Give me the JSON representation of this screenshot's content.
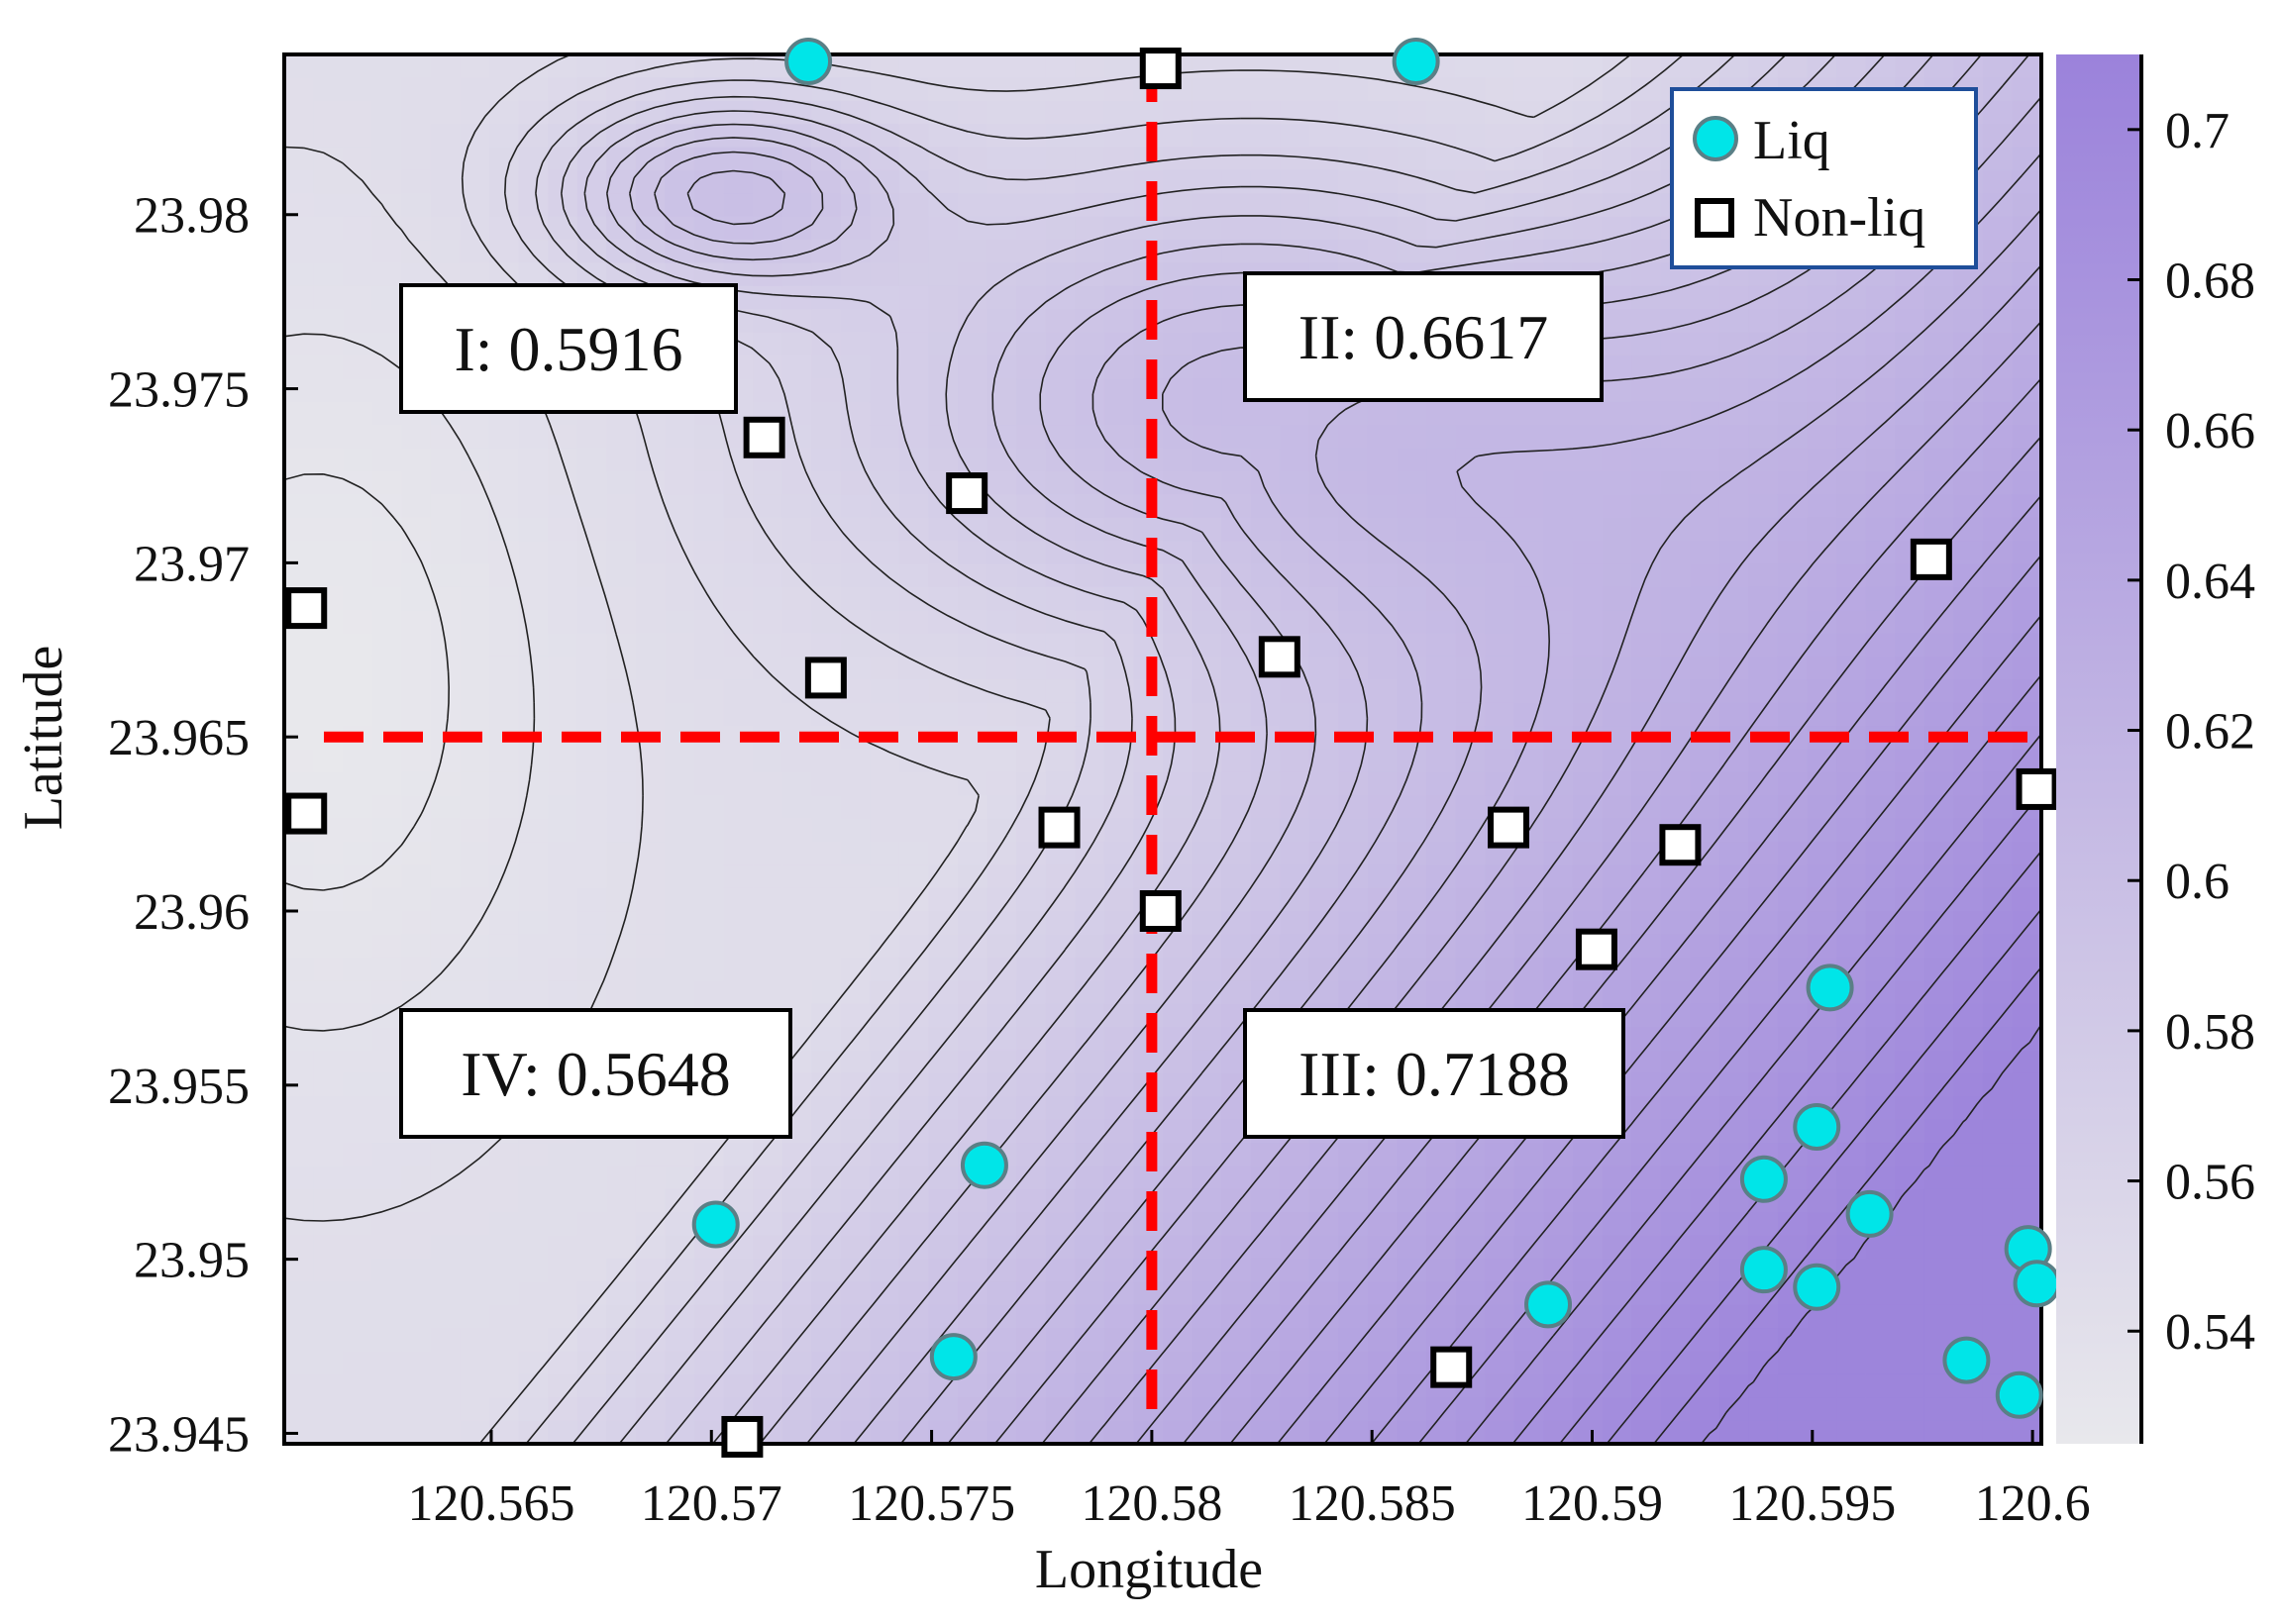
{
  "chart_data": {
    "type": "contour",
    "xlabel": "Longitude",
    "ylabel": "Latitude",
    "xlim": [
      120.5603,
      120.6002
    ],
    "ylim": [
      23.9447,
      23.9846
    ],
    "x_ticks": [
      "120.565",
      "120.57",
      "120.575",
      "120.58",
      "120.585",
      "120.59",
      "120.595",
      "120.6"
    ],
    "y_ticks": [
      "23.945",
      "23.95",
      "23.955",
      "23.96",
      "23.965",
      "23.97",
      "23.975",
      "23.98"
    ],
    "colorbar": {
      "range": [
        0.525,
        0.71
      ],
      "ticks": [
        "0.54",
        "0.56",
        "0.58",
        "0.6",
        "0.62",
        "0.64",
        "0.66",
        "0.68",
        "0.7"
      ],
      "color_low": "#e8e8ec",
      "color_high": "#9b82db"
    },
    "divider_lines": {
      "vertical_x": 120.58,
      "horizontal_y": 23.965,
      "color": "#ff0000"
    },
    "regions": [
      {
        "label": "I: 0.5916",
        "quadrant": "upper-left"
      },
      {
        "label": "II: 0.6617",
        "quadrant": "upper-right"
      },
      {
        "label": "III: 0.7188",
        "quadrant": "lower-right"
      },
      {
        "label": "IV: 0.5648",
        "quadrant": "lower-left"
      }
    ],
    "legend": {
      "placement": "top-right",
      "entries": [
        "Liq",
        "Non-liq"
      ]
    },
    "series": [
      {
        "name": "Liq",
        "marker": "circle",
        "color": "#00e5e8",
        "points": [
          [
            120.5722,
            23.9844
          ],
          [
            120.586,
            23.9844
          ],
          [
            120.5701,
            23.951
          ],
          [
            120.5762,
            23.9527
          ],
          [
            120.5755,
            23.9472
          ],
          [
            120.589,
            23.9487
          ],
          [
            120.5954,
            23.9578
          ],
          [
            120.5951,
            23.9538
          ],
          [
            120.5939,
            23.9523
          ],
          [
            120.5963,
            23.9513
          ],
          [
            120.5939,
            23.9497
          ],
          [
            120.5951,
            23.9492
          ],
          [
            120.5985,
            23.9471
          ],
          [
            120.5999,
            23.9503
          ],
          [
            120.6001,
            23.9493
          ],
          [
            120.5997,
            23.9461
          ]
        ]
      },
      {
        "name": "Non-liq",
        "marker": "square",
        "color": "#ffffff",
        "points": [
          [
            120.5802,
            23.9842
          ],
          [
            120.5712,
            23.9736
          ],
          [
            120.5758,
            23.972
          ],
          [
            120.5608,
            23.9687
          ],
          [
            120.5726,
            23.9667
          ],
          [
            120.5829,
            23.9673
          ],
          [
            120.5977,
            23.9701
          ],
          [
            120.5608,
            23.9628
          ],
          [
            120.5779,
            23.9624
          ],
          [
            120.5881,
            23.9624
          ],
          [
            120.592,
            23.9619
          ],
          [
            120.6001,
            23.9635
          ],
          [
            120.5802,
            23.96
          ],
          [
            120.5901,
            23.9589
          ],
          [
            120.5868,
            23.9469
          ],
          [
            120.5707,
            23.9449
          ]
        ]
      }
    ]
  }
}
